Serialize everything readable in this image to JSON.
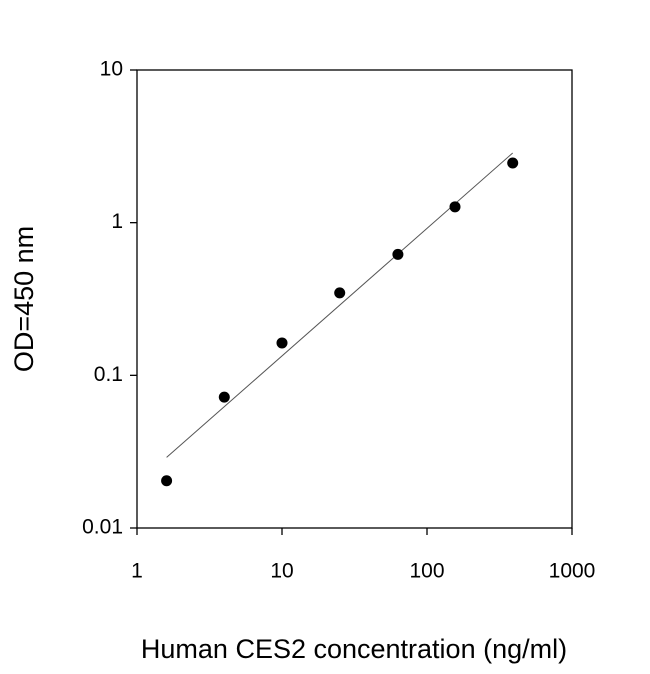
{
  "chart_data": {
    "type": "scatter",
    "xlabel": "Human CES2 concentration (ng/ml)",
    "ylabel": "OD=450 nm",
    "x": [
      1.6,
      4,
      10,
      25,
      63,
      156,
      390
    ],
    "values": [
      0.0204,
      0.072,
      0.163,
      0.347,
      0.62,
      1.27,
      2.46
    ],
    "color": "#000000",
    "fit": {
      "x": [
        1.6,
        390
      ],
      "y": [
        0.029,
        2.86
      ],
      "color": "#555555"
    },
    "xlog": true,
    "ylog": true,
    "xlim": [
      1,
      1000
    ],
    "ylim": [
      0.01,
      10
    ],
    "xticks": [
      1,
      10,
      100,
      1000
    ],
    "yticks": [
      0.01,
      0.1,
      1,
      10
    ]
  }
}
